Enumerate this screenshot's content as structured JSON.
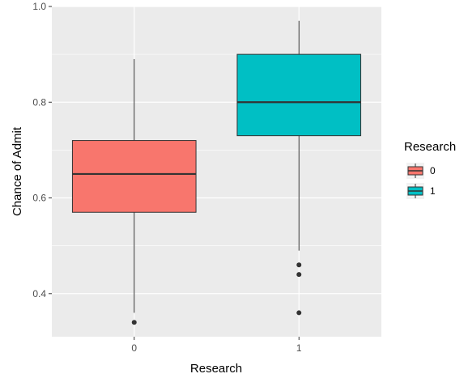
{
  "chart_data": {
    "type": "boxplot",
    "title": "",
    "xlabel": "Research",
    "ylabel": "Chance of Admit",
    "categories": [
      "0",
      "1"
    ],
    "ylim": [
      0.31,
      1.0
    ],
    "yticks": [
      0.4,
      0.6,
      0.8,
      1.0
    ],
    "ytick_labels": [
      "0.4",
      "0.6",
      "0.8",
      "1.0"
    ],
    "grid": true,
    "legend": {
      "title": "Research",
      "position": "right",
      "entries": [
        {
          "label": "0",
          "color": "#F8766D"
        },
        {
          "label": "1",
          "color": "#00BFC4"
        }
      ]
    },
    "series": [
      {
        "category": "0",
        "whisker_low": 0.36,
        "q1": 0.57,
        "median": 0.65,
        "q3": 0.72,
        "whisker_high": 0.89,
        "outliers": [
          0.34
        ],
        "color": "#F8766D"
      },
      {
        "category": "1",
        "whisker_low": 0.49,
        "q1": 0.73,
        "median": 0.8,
        "q3": 0.9,
        "whisker_high": 0.97,
        "outliers": [
          0.46,
          0.44,
          0.36
        ],
        "color": "#00BFC4"
      }
    ]
  }
}
